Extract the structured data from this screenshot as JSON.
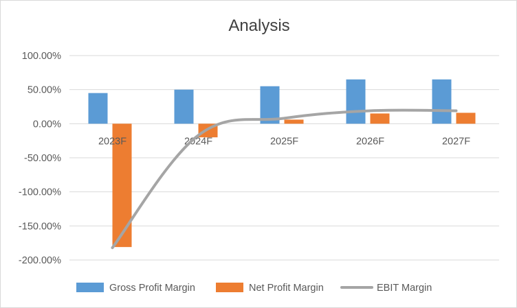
{
  "chart_data": {
    "type": "bar",
    "title": "Analysis",
    "categories": [
      "2023F",
      "2024F",
      "2025F",
      "2026F",
      "2027F"
    ],
    "series": [
      {
        "name": "Gross Profit Margin",
        "kind": "bar",
        "color": "#5b9bd5",
        "values": [
          45,
          50,
          55,
          65,
          65
        ]
      },
      {
        "name": "Net Profit Margin",
        "kind": "bar",
        "color": "#ed7d31",
        "values": [
          -181,
          -20,
          6,
          15,
          16
        ]
      },
      {
        "name": "EBIT Margin",
        "kind": "line",
        "color": "#a5a5a5",
        "values": [
          -182,
          -17,
          8,
          19,
          19
        ]
      }
    ],
    "ylim": [
      -200,
      100
    ],
    "yticks": [
      "100.00%",
      "50.00%",
      "0.00%",
      "-50.00%",
      "-100.00%",
      "-150.00%",
      "-200.00%"
    ],
    "ytick_values": [
      100,
      50,
      0,
      -50,
      -100,
      -150,
      -200
    ],
    "grid": true,
    "legend_position": "bottom"
  }
}
